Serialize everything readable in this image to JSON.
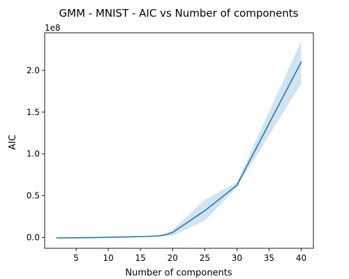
{
  "chart_data": {
    "type": "line",
    "title": "GMM - MNIST - AIC vs Number of components",
    "xlabel": "Number of components",
    "ylabel": "AIC",
    "y_offset_label": "1e8",
    "x_ticks": [
      5,
      10,
      15,
      20,
      25,
      30,
      35,
      40
    ],
    "y_ticks": [
      0.0,
      0.5,
      1.0,
      1.5,
      2.0
    ],
    "y_tick_labels": [
      "0.0",
      "0.5",
      "1.0",
      "1.5",
      "2.0"
    ],
    "xlim": [
      0.1,
      41.9
    ],
    "ylim": [
      -0.13,
      2.45
    ],
    "grid": false,
    "series": [
      {
        "x": [
          2,
          4,
          6,
          8,
          10,
          12,
          14,
          16,
          17,
          18,
          19,
          20,
          25,
          30,
          40
        ],
        "values": [
          -0.005,
          -0.004,
          -0.003,
          -0.001,
          0.002,
          0.005,
          0.008,
          0.012,
          0.016,
          0.02,
          0.035,
          0.06,
          0.32,
          0.625,
          2.1
        ],
        "lower": [
          -0.007,
          -0.006,
          -0.005,
          -0.003,
          -0.001,
          0.002,
          0.004,
          0.008,
          0.01,
          0.013,
          0.018,
          0.02,
          0.2,
          0.6,
          1.84
        ],
        "upper": [
          -0.003,
          -0.002,
          -0.001,
          0.001,
          0.005,
          0.008,
          0.012,
          0.018,
          0.022,
          0.028,
          0.05,
          0.09,
          0.45,
          0.66,
          2.35
        ],
        "color": "#1f77b4",
        "band_color": "#1f77b4"
      }
    ]
  }
}
